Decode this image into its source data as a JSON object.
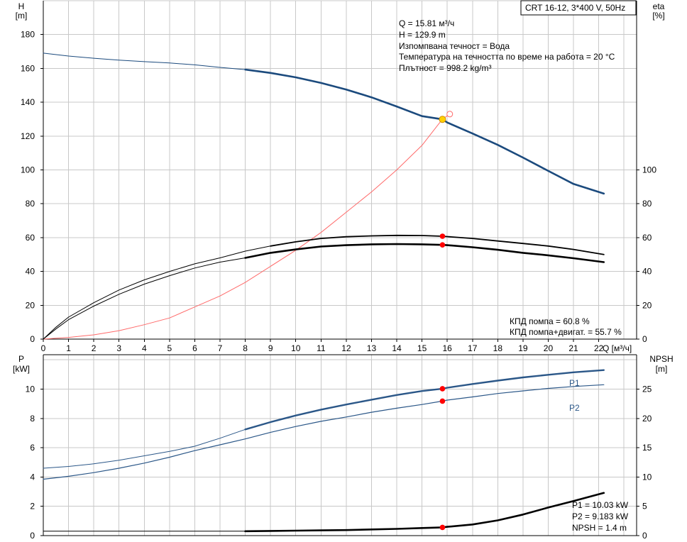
{
  "pump_label": "CRT 16-12, 3*400 V, 50Hz",
  "info_lines": [
    "Q = 15.81 м³/ч",
    "H = 129.9 m",
    "Изпомпвана течност = Вода",
    "Температура на течността по време на работа = 20 °C",
    "Плътност = 998.2 kg/m³"
  ],
  "eff_lines": [
    "КПД помпа = 60.8 %",
    "КПД помпа+двигат. = 55.7 %"
  ],
  "power_lines": [
    "P1 = 10.03 kW",
    "P2 = 9.183 kW",
    "NPSH = 1.4 m"
  ],
  "colors": {
    "head": "#1b4a7d",
    "power": "#2b5788",
    "efficiency": "#000000",
    "system": "#ff6a6a",
    "duty_point": "#ff0000",
    "duty_head": "#ffd000"
  },
  "chart_data": [
    {
      "type": "line",
      "ylabel": "H",
      "yunit": "[m]",
      "y2label": "eta",
      "y2unit": "[%]",
      "xlabel": "Q [м³/ч]",
      "xlim": [
        0,
        23.5
      ],
      "ylim": [
        0,
        200
      ],
      "y2lim": [
        0,
        200
      ],
      "x_ticks": [
        0,
        1,
        2,
        3,
        4,
        5,
        6,
        7,
        8,
        9,
        10,
        11,
        12,
        13,
        14,
        15,
        16,
        17,
        18,
        19,
        20,
        21,
        22
      ],
      "y_ticks": [
        0,
        20,
        40,
        60,
        80,
        100,
        120,
        140,
        160,
        180
      ],
      "y2_ticks": [
        0,
        20,
        40,
        60,
        80,
        100
      ],
      "grid": true,
      "duty_point": {
        "x": 15.81,
        "head": 129.9,
        "eta_pump": 60.8,
        "eta_total": 55.7
      },
      "series": [
        {
          "key": "head_thin",
          "x": [
            0,
            1,
            2,
            3,
            4,
            5,
            6,
            7,
            8
          ],
          "values": [
            169,
            167.3,
            166,
            164.9,
            164,
            163.2,
            162.1,
            160.6,
            159.3
          ]
        },
        {
          "key": "head",
          "x": [
            8,
            9,
            10,
            11,
            12,
            13,
            14,
            15,
            15.81,
            16,
            17,
            18,
            19,
            20,
            21,
            22.2
          ],
          "values": [
            159.3,
            157.3,
            154.7,
            151.4,
            147.5,
            142.9,
            137.5,
            131.8,
            129.9,
            128,
            121.5,
            114.8,
            107.3,
            99.4,
            91.7,
            86
          ]
        },
        {
          "key": "eta_pump",
          "x": [
            0,
            0.5,
            1,
            2,
            3,
            4,
            5,
            6,
            7,
            8,
            9,
            10,
            11,
            12,
            13,
            14,
            15,
            15.81,
            16,
            17,
            18,
            19,
            20,
            21,
            22.2
          ],
          "values": [
            0,
            7,
            13,
            21.5,
            29,
            35,
            40,
            44.5,
            48,
            52,
            55,
            57.5,
            59.5,
            60.5,
            61,
            61.3,
            61.2,
            60.8,
            60.6,
            59.5,
            58,
            56.5,
            55,
            53,
            50
          ]
        },
        {
          "key": "eta_total",
          "x": [
            0,
            0.5,
            1,
            2,
            3,
            4,
            5,
            6,
            7,
            8,
            9,
            10,
            11,
            12,
            13,
            14,
            15,
            15.81,
            16,
            17,
            18,
            19,
            20,
            21,
            22.2
          ],
          "values": [
            0,
            6,
            11.5,
            19.5,
            26.5,
            32.5,
            37.5,
            42,
            45.5,
            48,
            51,
            53,
            54.7,
            55.5,
            56,
            56.2,
            56,
            55.7,
            55.5,
            54.3,
            52.8,
            51,
            49.5,
            47.8,
            45.5
          ]
        },
        {
          "key": "system",
          "x": [
            0,
            0.5,
            1,
            2,
            3,
            4,
            5,
            6,
            7,
            8,
            9,
            10,
            11,
            12,
            13,
            14,
            15,
            15.81,
            16.1
          ],
          "values": [
            0,
            0.5,
            1,
            2.5,
            5,
            8.5,
            12.5,
            19,
            25.5,
            33.5,
            43,
            52.5,
            63,
            75,
            87,
            100,
            114.5,
            130,
            133
          ]
        }
      ]
    },
    {
      "type": "line",
      "ylabel": "P",
      "yunit": "[kW]",
      "y2label": "NPSH",
      "y2unit": "[m]",
      "xlim": [
        0,
        23.5
      ],
      "ylim": [
        0,
        12.35
      ],
      "y2lim": [
        0,
        30.9
      ],
      "y_ticks": [
        0,
        2,
        4,
        6,
        8,
        10
      ],
      "y2_ticks": [
        0,
        5,
        10,
        15,
        20,
        25
      ],
      "grid": true,
      "duty_point": {
        "x": 15.81,
        "p1": 10.03,
        "p2": 9.183,
        "npsh": 1.4
      },
      "series": [
        {
          "key": "P1_thin",
          "x": [
            0,
            1,
            2,
            3,
            4,
            5,
            6,
            7,
            8
          ],
          "values": [
            4.6,
            4.72,
            4.9,
            5.15,
            5.45,
            5.75,
            6.1,
            6.65,
            7.25
          ]
        },
        {
          "name": "P1",
          "key": "P1",
          "x": [
            8,
            9,
            10,
            11,
            12,
            13,
            14,
            15,
            15.81,
            16,
            17,
            18,
            19,
            20,
            21,
            22.2
          ],
          "values": [
            7.25,
            7.75,
            8.2,
            8.6,
            8.95,
            9.28,
            9.6,
            9.87,
            10.03,
            10.1,
            10.35,
            10.58,
            10.8,
            10.98,
            11.15,
            11.3
          ]
        },
        {
          "name": "P2",
          "key": "P2",
          "x": [
            0,
            1,
            2,
            3,
            4,
            5,
            6,
            7,
            8,
            9,
            10,
            11,
            12,
            13,
            14,
            15,
            15.81,
            16,
            17,
            18,
            19,
            20,
            21,
            22.2
          ],
          "values": [
            3.85,
            4.05,
            4.3,
            4.6,
            4.95,
            5.35,
            5.8,
            6.2,
            6.6,
            7.05,
            7.45,
            7.8,
            8.1,
            8.42,
            8.7,
            8.95,
            9.183,
            9.25,
            9.47,
            9.7,
            9.88,
            10.05,
            10.18,
            10.3
          ]
        },
        {
          "key": "npsh_thin",
          "x": [
            0,
            1,
            2,
            3,
            4,
            5,
            6,
            7,
            8
          ],
          "values": [
            0.75,
            0.75,
            0.75,
            0.75,
            0.75,
            0.75,
            0.75,
            0.75,
            0.75
          ]
        },
        {
          "key": "npsh",
          "x": [
            8,
            9,
            10,
            11,
            12,
            13,
            14,
            15,
            15.81,
            16,
            17,
            18,
            19,
            20,
            21,
            22.2
          ],
          "values": [
            0.75,
            0.8,
            0.85,
            0.9,
            0.95,
            1.05,
            1.15,
            1.3,
            1.4,
            1.5,
            1.9,
            2.6,
            3.6,
            4.8,
            5.9,
            7.3
          ]
        }
      ]
    }
  ]
}
